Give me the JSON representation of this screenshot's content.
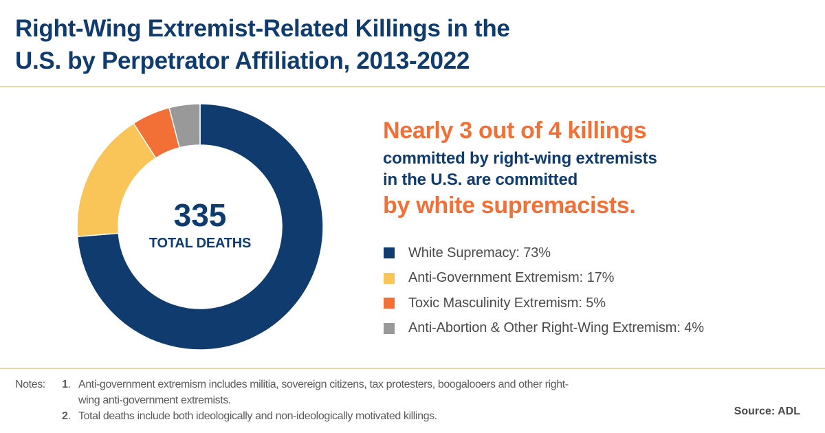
{
  "title": {
    "line1": "Right-Wing Extremist-Related Killings in the",
    "line2": "U.S. by Perpetrator Affiliation, 2013-2022"
  },
  "donut": {
    "total": "335",
    "total_label": "TOTAL DEATHS"
  },
  "headline": {
    "line1": "Nearly 3 out of 4 killings",
    "line2": "committed by right-wing extremists",
    "line3": "in the U.S. are committed",
    "line4": "by white supremacists."
  },
  "legend": [
    {
      "label": "White Supremacy: 73%",
      "color": "#0f3b6e"
    },
    {
      "label": "Anti-Government Extremism: 17%",
      "color": "#f9c559"
    },
    {
      "label": "Toxic Masculinity Extremism: 5%",
      "color": "#f26f35"
    },
    {
      "label": "Anti-Abortion & Other Right-Wing Extremism: 4%",
      "color": "#999999"
    }
  ],
  "notes": {
    "prefix": "Notes:",
    "items": [
      {
        "num": "1",
        "text": "Anti-government extremism includes militia, sovereign citizens, tax protesters, boogalooers and other right-wing anti-government extremists."
      },
      {
        "num": "2",
        "text": "Total deaths include both ideologically and non-ideologically motivated killings."
      }
    ]
  },
  "source": "Source: ADL",
  "colors": {
    "navy": "#0f3b6e",
    "orange": "#f26f35",
    "yellow": "#f9c559",
    "gray": "#999999",
    "divider": "#e6d5a6"
  },
  "chart_data": {
    "type": "pie",
    "subtype": "donut",
    "title": "Right-Wing Extremist-Related Killings in the U.S. by Perpetrator Affiliation, 2013-2022",
    "center_text": {
      "value": 335,
      "label": "TOTAL DEATHS"
    },
    "categories": [
      "White Supremacy",
      "Anti-Government Extremism",
      "Toxic Masculinity Extremism",
      "Anti-Abortion & Other Right-Wing Extremism"
    ],
    "values": [
      73,
      17,
      5,
      4
    ],
    "unit": "%",
    "colors": [
      "#0f3b6e",
      "#f9c559",
      "#f26f35",
      "#999999"
    ],
    "start_angle_deg": 0,
    "direction": "clockwise",
    "legend_position": "right",
    "source": "ADL"
  }
}
